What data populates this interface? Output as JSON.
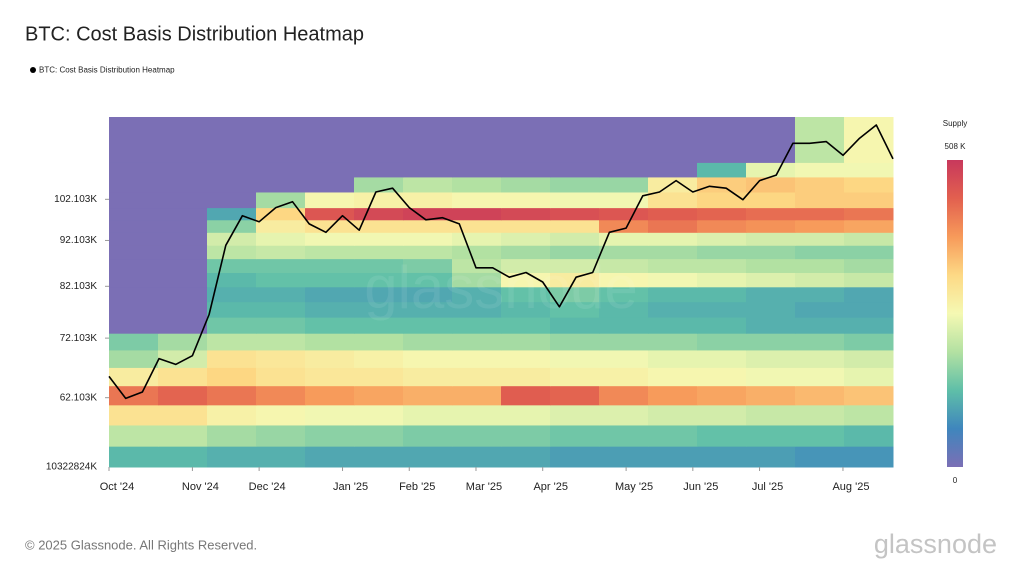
{
  "chart_data": {
    "type": "heatmap",
    "title": "BTC: Cost Basis Distribution Heatmap",
    "log_y": true,
    "ylim": [
      52200,
      125500
    ],
    "yticks": [
      {
        "value": 62103,
        "label": "62.103K"
      },
      {
        "value": 72103,
        "label": "72.103K"
      },
      {
        "value": 82103,
        "label": "82.103K"
      },
      {
        "value": 92103,
        "label": "92.103K"
      },
      {
        "value": 102103,
        "label": "102.103K"
      }
    ],
    "y_axis_end_label": "10322824K",
    "categories": [
      "Oct '24",
      null,
      null,
      null,
      null,
      "Nov '24",
      null,
      null,
      null,
      "Dec '24",
      null,
      null,
      null,
      null,
      "Jan '25",
      null,
      null,
      null,
      "Feb '25",
      null,
      null,
      null,
      "Mar '25",
      null,
      null,
      null,
      "Apr '25",
      null,
      null,
      null,
      null,
      "May '25",
      null,
      null,
      null,
      "Jun '25",
      null,
      null,
      null,
      "Jul '25",
      null,
      null,
      null,
      null,
      "Aug '25",
      null,
      null,
      null
    ],
    "series": [
      {
        "name": "BTC: Cost Basis Distribution Heatmap",
        "color": "#000000",
        "values": [
          65500,
          62000,
          63000,
          68500,
          67500,
          69000,
          76500,
          91000,
          98000,
          96500,
          100000,
          101500,
          96000,
          94000,
          98000,
          94500,
          104000,
          105000,
          100000,
          97000,
          97500,
          96000,
          86000,
          86000,
          84000,
          85000,
          83000,
          78000,
          84000,
          85000,
          94000,
          95000,
          103000,
          104000,
          107000,
          104000,
          105500,
          105000,
          102000,
          107000,
          108500,
          117500,
          117500,
          118000,
          114000,
          119000,
          123000,
          113000
        ]
      }
    ],
    "heatmap": {
      "y_bins": [
        52200,
        55000,
        58000,
        61000,
        64000,
        67000,
        70000,
        73000,
        76000,
        79000,
        82000,
        85000,
        88000,
        91000,
        94000,
        97000,
        100000,
        104000,
        108000,
        112000,
        125500
      ],
      "values": [
        [
          120,
          120,
          110,
          110,
          100,
          100,
          100,
          100,
          100,
          90,
          90,
          90,
          90,
          90,
          80,
          80
        ],
        [
          200,
          200,
          180,
          170,
          160,
          160,
          150,
          150,
          150,
          140,
          140,
          140,
          130,
          130,
          130,
          120
        ],
        [
          300,
          300,
          270,
          260,
          250,
          250,
          240,
          240,
          240,
          230,
          230,
          220,
          220,
          210,
          210,
          200
        ],
        [
          420,
          440,
          420,
          400,
          380,
          370,
          360,
          360,
          450,
          440,
          400,
          380,
          370,
          360,
          350,
          340
        ],
        [
          280,
          300,
          320,
          300,
          290,
          290,
          280,
          280,
          280,
          270,
          270,
          260,
          260,
          250,
          250,
          240
        ],
        [
          180,
          220,
          300,
          290,
          280,
          270,
          260,
          260,
          260,
          250,
          250,
          240,
          240,
          230,
          230,
          220
        ],
        [
          150,
          180,
          200,
          200,
          190,
          190,
          180,
          180,
          180,
          170,
          170,
          170,
          160,
          160,
          160,
          150
        ],
        [
          0,
          0,
          140,
          140,
          130,
          130,
          130,
          130,
          130,
          120,
          120,
          120,
          120,
          110,
          110,
          110
        ],
        [
          0,
          0,
          120,
          120,
          110,
          110,
          110,
          110,
          120,
          130,
          120,
          110,
          110,
          110,
          100,
          100
        ],
        [
          0,
          0,
          110,
          110,
          100,
          100,
          100,
          110,
          130,
          150,
          130,
          120,
          120,
          110,
          110,
          100
        ],
        [
          0,
          0,
          120,
          130,
          130,
          130,
          130,
          180,
          260,
          280,
          260,
          250,
          240,
          230,
          220,
          210
        ],
        [
          0,
          0,
          140,
          140,
          140,
          140,
          150,
          200,
          220,
          220,
          210,
          200,
          200,
          190,
          190,
          180
        ],
        [
          0,
          0,
          200,
          210,
          200,
          200,
          200,
          190,
          180,
          170,
          180,
          180,
          170,
          170,
          160,
          160
        ],
        [
          0,
          0,
          220,
          240,
          250,
          250,
          250,
          240,
          230,
          220,
          240,
          240,
          230,
          220,
          220,
          210
        ],
        [
          0,
          0,
          160,
          280,
          300,
          300,
          300,
          300,
          300,
          300,
          400,
          420,
          400,
          390,
          380,
          370
        ],
        [
          0,
          0,
          100,
          320,
          460,
          480,
          490,
          490,
          480,
          470,
          460,
          450,
          440,
          430,
          430,
          420
        ],
        [
          0,
          0,
          0,
          180,
          260,
          270,
          270,
          260,
          260,
          250,
          250,
          300,
          320,
          320,
          330,
          330
        ],
        [
          0,
          0,
          0,
          0,
          0,
          180,
          200,
          190,
          180,
          170,
          170,
          280,
          330,
          340,
          330,
          320
        ],
        [
          0,
          0,
          0,
          0,
          0,
          0,
          0,
          0,
          0,
          0,
          0,
          0,
          120,
          240,
          250,
          250
        ],
        [
          0,
          0,
          0,
          0,
          0,
          0,
          0,
          0,
          0,
          0,
          0,
          0,
          0,
          0,
          200,
          260
        ]
      ],
      "colorscale": [
        "#7b6fb5",
        "#3f86bd",
        "#5fbfa8",
        "#b3e1a2",
        "#f5f9b3",
        "#fdd985",
        "#f79a5a",
        "#e2604f",
        "#c8385c"
      ],
      "colorbar": {
        "title": "Supply",
        "lim": [
          0,
          508
        ],
        "ticks": [
          0,
          {
            "value": 508,
            "label": "508 K"
          }
        ]
      }
    },
    "footer": "© 2025 Glassnode. All Rights Reserved.",
    "brand": "glassnode"
  }
}
